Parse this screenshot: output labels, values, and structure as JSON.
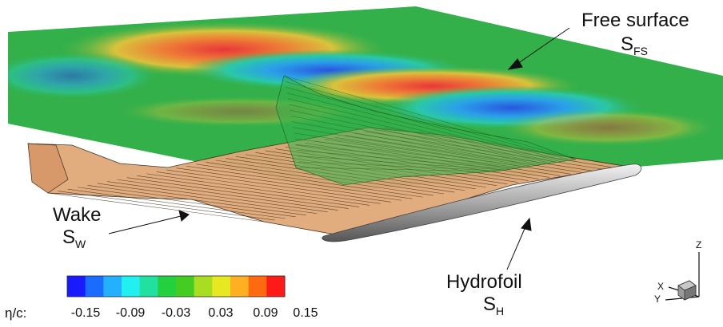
{
  "labels": {
    "free_surface": {
      "line1": "Free surface",
      "symbol": "S",
      "subscript": "FS"
    },
    "wake": {
      "line1": "Wake",
      "symbol": "S",
      "subscript": "W"
    },
    "hydrofoil": {
      "line1": "Hydrofoil",
      "symbol": "S",
      "subscript": "H"
    }
  },
  "legend": {
    "variable": "η/c:",
    "ticks": [
      "-0.15",
      "-0.09",
      "-0.03",
      "0.03",
      "0.09",
      "0.15"
    ],
    "colors": [
      "#1a1aff",
      "#1a6cff",
      "#22b0ff",
      "#22f0f0",
      "#22e0a0",
      "#22d040",
      "#44cc22",
      "#a8dd22",
      "#e8e822",
      "#ffb022",
      "#ff6a10",
      "#ff1a1a"
    ]
  },
  "axes": {
    "x": "X",
    "y": "Y",
    "z": "Z"
  },
  "colors": {
    "free_surface_base": "#33b04a",
    "wake": "#e0a878",
    "wake_mesh": "#3a2a1a",
    "hydrofoil": "#9a9a9a"
  }
}
